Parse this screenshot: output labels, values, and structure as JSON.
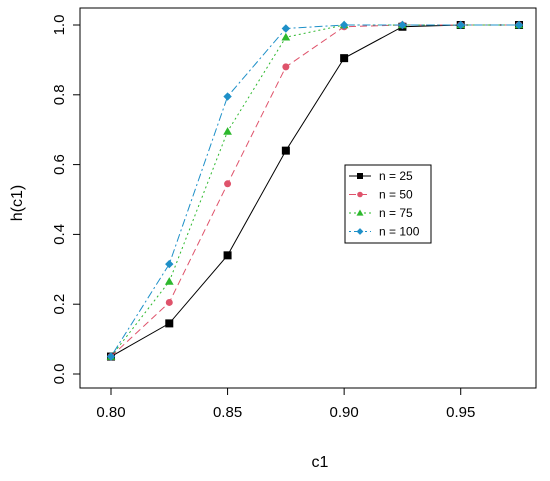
{
  "chart_data": {
    "type": "line",
    "xlabel": "c1",
    "ylabel": "h(c1)",
    "xlim": [
      0.8,
      0.975
    ],
    "ylim": [
      0.0,
      1.0
    ],
    "x_ticks": [
      "0.80",
      "0.85",
      "0.90",
      "0.95"
    ],
    "y_ticks": [
      "0.0",
      "0.2",
      "0.4",
      "0.6",
      "0.8",
      "1.0"
    ],
    "x": [
      0.8,
      0.825,
      0.85,
      0.875,
      0.9,
      0.925,
      0.95,
      0.975
    ],
    "legend_position": "center-right",
    "series": [
      {
        "name": "n = 25",
        "color": "#000000",
        "dash": "solid",
        "marker": "square",
        "values": [
          0.05,
          0.145,
          0.34,
          0.64,
          0.905,
          0.995,
          1.0,
          1.0
        ]
      },
      {
        "name": "n = 50",
        "color": "#DF536B",
        "dash": "dashed",
        "marker": "circle",
        "values": [
          0.05,
          0.205,
          0.545,
          0.88,
          0.995,
          1.0,
          1.0,
          1.0
        ]
      },
      {
        "name": "n = 75",
        "color": "#2DB82D",
        "dash": "dotted",
        "marker": "triangle",
        "values": [
          0.05,
          0.265,
          0.695,
          0.965,
          1.0,
          1.0,
          1.0,
          1.0
        ]
      },
      {
        "name": "n = 100",
        "color": "#1E90C8",
        "dash": "dotdash",
        "marker": "diamond",
        "values": [
          0.05,
          0.315,
          0.795,
          0.99,
          1.0,
          1.0,
          1.0,
          1.0
        ]
      }
    ]
  }
}
